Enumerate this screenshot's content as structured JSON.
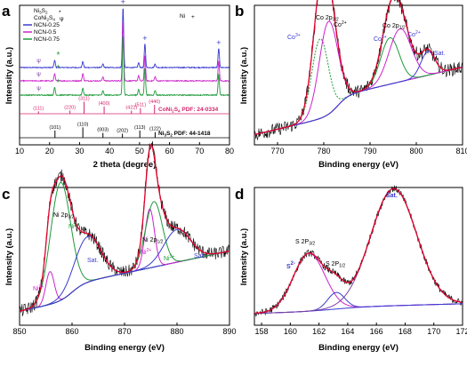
{
  "colors": {
    "black": "#000000",
    "red": "#e0002a",
    "pink": "#d4266c",
    "magenta": "#cc22cc",
    "purple": "#7a3fa0",
    "green": "#1e9a3a",
    "blue": "#3a3ad0",
    "teal": "#2a8a7a"
  },
  "chart_data": [
    {
      "type": "line",
      "panel": "a",
      "xlabel": "2 theta (degree)",
      "ylabel": "Intensity (a.u.)",
      "xlim": [
        10,
        80
      ],
      "xticks": [
        "10",
        "20",
        "30",
        "40",
        "50",
        "60",
        "70",
        "80"
      ],
      "legend": {
        "position": "top-left",
        "items": [
          {
            "label": "Ni3S2",
            "marker": "*"
          },
          {
            "label": "CoNi2S4",
            "marker": "ψ"
          },
          {
            "label": "NCN-0.25"
          },
          {
            "label": "NCN-0.5"
          },
          {
            "label": "NCN-0.75"
          }
        ]
      },
      "ni_marker_legend": "Ni +",
      "series": [
        {
          "name": "NCN-0.25",
          "color": "#3a3ad0",
          "peaks": [
            {
              "x": 21.7,
              "h": 0.12
            },
            {
              "x": 31.1,
              "h": 0.1
            },
            {
              "x": 37.8,
              "h": 0.06
            },
            {
              "x": 44.5,
              "h": 1.0
            },
            {
              "x": 49.7,
              "h": 0.08
            },
            {
              "x": 51.8,
              "h": 0.4
            },
            {
              "x": 55.2,
              "h": 0.06
            },
            {
              "x": 76.4,
              "h": 0.32
            }
          ]
        },
        {
          "name": "NCN-0.5",
          "color": "#cc22cc",
          "peaks": [
            {
              "x": 21.7,
              "h": 0.12
            },
            {
              "x": 31.1,
              "h": 0.12
            },
            {
              "x": 37.8,
              "h": 0.07
            },
            {
              "x": 44.5,
              "h": 1.0
            },
            {
              "x": 49.7,
              "h": 0.09
            },
            {
              "x": 51.8,
              "h": 0.42
            },
            {
              "x": 55.2,
              "h": 0.07
            },
            {
              "x": 76.4,
              "h": 0.33
            }
          ]
        },
        {
          "name": "NCN-0.75",
          "color": "#1e9a3a",
          "peaks": [
            {
              "x": 21.7,
              "h": 0.13
            },
            {
              "x": 31.1,
              "h": 0.12
            },
            {
              "x": 37.8,
              "h": 0.07
            },
            {
              "x": 44.5,
              "h": 1.0
            },
            {
              "x": 49.7,
              "h": 0.1
            },
            {
              "x": 51.8,
              "h": 0.45
            },
            {
              "x": 55.2,
              "h": 0.08
            },
            {
              "x": 76.4,
              "h": 0.35
            }
          ]
        }
      ],
      "reference_cards": [
        {
          "name": "CoNi2S4 PDF: 24-0334",
          "color": "#d4266c",
          "sticks": [
            {
              "x": 16.3,
              "h": 0.15,
              "label": "(111)"
            },
            {
              "x": 26.8,
              "h": 0.2,
              "label": "(220)"
            },
            {
              "x": 31.5,
              "h": 0.75,
              "label": "(311)"
            },
            {
              "x": 38.2,
              "h": 0.45,
              "label": "(400)"
            },
            {
              "x": 47.3,
              "h": 0.2,
              "label": "(422)"
            },
            {
              "x": 50.3,
              "h": 0.35,
              "label": "(511)"
            },
            {
              "x": 55.0,
              "h": 0.55,
              "label": "(440)"
            }
          ]
        },
        {
          "name": "Ni3S2 PDF: 44-1418",
          "color": "#000000",
          "sticks": [
            {
              "x": 21.8,
              "h": 0.45,
              "label": "(101)"
            },
            {
              "x": 31.1,
              "h": 0.65,
              "label": "(110)"
            },
            {
              "x": 37.8,
              "h": 0.3,
              "label": "(003)"
            },
            {
              "x": 44.3,
              "h": 0.25,
              "label": "(202)"
            },
            {
              "x": 50.1,
              "h": 0.45,
              "label": "(113)"
            },
            {
              "x": 55.2,
              "h": 0.35,
              "label": "(122)"
            }
          ]
        }
      ],
      "ni_peaks_x": [
        44.5,
        51.8,
        76.4
      ],
      "star_peaks_x": [
        21.7
      ],
      "psi_peaks_x": [
        16.3
      ]
    },
    {
      "type": "line",
      "panel": "b",
      "xlabel": "Binding energy (eV)",
      "ylabel": "Intensity (a.u.)",
      "xlim": [
        765,
        810
      ],
      "xticks": [
        "770",
        "780",
        "790",
        "800",
        "810"
      ],
      "annotations": [
        "Co 2p3/2",
        "Co3+",
        "Co2+",
        "Co 2p1/2",
        "Co3+",
        "Co2+",
        "Sat."
      ],
      "components": [
        {
          "type": "baseline",
          "color": "#3a3ad0"
        },
        {
          "type": "envelope",
          "color": "#e0002a"
        },
        {
          "type": "peak",
          "color": "#1e9a3a",
          "center": 779.2,
          "width": 1.8,
          "amp": 0.6
        },
        {
          "type": "peak",
          "color": "#cc22cc",
          "center": 781.0,
          "width": 2.0,
          "amp": 0.7
        },
        {
          "type": "peak",
          "color": "#1e9a3a",
          "center": 794.3,
          "width": 2.0,
          "amp": 0.35
        },
        {
          "type": "peak",
          "color": "#cc22cc",
          "center": 796.5,
          "width": 2.4,
          "amp": 0.4
        },
        {
          "type": "peak",
          "color": "#3a3ad0",
          "center": 802.5,
          "width": 1.5,
          "amp": 0.18
        }
      ]
    },
    {
      "type": "line",
      "panel": "c",
      "xlabel": "Binding energy (eV)",
      "ylabel": "Intensity (a.u.)",
      "xlim": [
        850,
        890
      ],
      "xticks": [
        "850",
        "860",
        "870",
        "880",
        "890"
      ],
      "annotations": [
        "Ni 2p3/2",
        "Ni2+",
        "Ni3+",
        "Sat.",
        "Ni 2p1/2",
        "Ni2+",
        "Ni3+",
        "Sat."
      ],
      "components": [
        {
          "type": "baseline",
          "color": "#3a3ad0"
        },
        {
          "type": "envelope",
          "color": "#e0002a"
        },
        {
          "type": "peak",
          "color": "#cc22cc",
          "center": 855.8,
          "width": 0.8,
          "amp": 0.25
        },
        {
          "type": "peak",
          "color": "#1e9a3a",
          "center": 857.8,
          "width": 1.9,
          "amp": 0.9
        },
        {
          "type": "peak",
          "color": "#3a3ad0",
          "center": 863.0,
          "width": 2.5,
          "amp": 0.35
        },
        {
          "type": "peak",
          "color": "#cc22cc",
          "center": 874.8,
          "width": 0.9,
          "amp": 0.45
        },
        {
          "type": "peak",
          "color": "#1e9a3a",
          "center": 875.6,
          "width": 1.6,
          "amp": 0.5
        },
        {
          "type": "peak",
          "color": "#3a3ad0",
          "center": 880.0,
          "width": 2.5,
          "amp": 0.25
        }
      ]
    },
    {
      "type": "line",
      "panel": "d",
      "xlabel": "Binding energy (eV)",
      "ylabel": "Intensity (a.u.)",
      "xlim": [
        157.5,
        172
      ],
      "xticks": [
        "158",
        "160",
        "162",
        "164",
        "166",
        "168",
        "170",
        "172"
      ],
      "annotations": [
        "S2-",
        "S 2P3/2",
        "S 2P1/2",
        "Sat."
      ],
      "components": [
        {
          "type": "baseline",
          "color": "#3a3ad0"
        },
        {
          "type": "envelope",
          "color": "#e0002a"
        },
        {
          "type": "peak",
          "color": "#cc22cc",
          "center": 161.3,
          "width": 1.1,
          "amp": 0.42
        },
        {
          "type": "peak",
          "color": "#3a3ad0",
          "center": 163.2,
          "width": 0.6,
          "amp": 0.12
        },
        {
          "type": "peak",
          "color": "#7a3fa0",
          "center": 167.2,
          "width": 1.6,
          "amp": 0.85
        }
      ]
    }
  ],
  "panels": {
    "a": {
      "label": "a",
      "xlabel": "2 theta (degree)",
      "ylabel": "Intensity (a.u.)",
      "legend_labels": [
        "Ni",
        "3",
        "S",
        "2",
        "CoNi",
        "2",
        "S",
        "4",
        "NCN-0.25",
        "NCN-0.5",
        "NCN-0.75"
      ],
      "ni_label": "Ni",
      "plus": "+",
      "star": "*",
      "psi": "ψ",
      "pdf1": "CoNi",
      "pdf1_sub1": "2",
      "pdf1_mid": "S",
      "pdf1_sub2": "4",
      "pdf1_tail": " PDF: 24-0334",
      "pdf2": "Ni",
      "pdf2_sub1": "3",
      "pdf2_mid": "S",
      "pdf2_sub2": "2",
      "pdf2_tail": " PDF: 44-1418"
    },
    "b": {
      "label": "b",
      "co2p32": "Co 2p",
      "co2p32_sub": "3/2",
      "co2p12": "Co 2p",
      "co2p12_sub": "1/2",
      "co3": "Co",
      "co3_sup": "3+",
      "co2": "Co",
      "co2_sup": "2+",
      "sat": "Sat."
    },
    "c": {
      "label": "c",
      "ni2p32": "Ni 2p",
      "ni2p32_sub": "3/2",
      "ni2p12": "Ni 2p",
      "ni2p12_sub": "1/2",
      "ni": "Ni",
      "sup2": "2+",
      "sup3": "3+",
      "sat": "Sat."
    },
    "d": {
      "label": "d",
      "s": "S",
      "s_sup": "2-",
      "s2p": "S 2P",
      "s2p32_sub": "3/2",
      "s2p12_sub": "1/2",
      "sat": "Sat."
    }
  }
}
